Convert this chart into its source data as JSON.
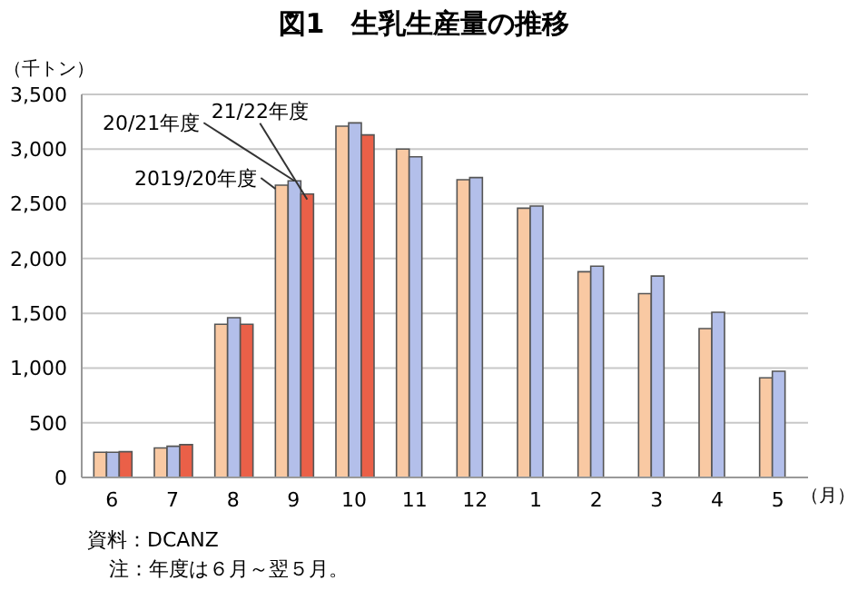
{
  "chart_data": {
    "type": "bar",
    "title": "図1　生乳生産量の推移",
    "ylabel": "（千トン）",
    "xlabel": "（月）",
    "categories": [
      "6",
      "7",
      "8",
      "9",
      "10",
      "11",
      "12",
      "1",
      "2",
      "3",
      "4",
      "5"
    ],
    "series": [
      {
        "name": "2019/20年度",
        "color": "#f9c9a3",
        "values": [
          230,
          270,
          1400,
          2670,
          3210,
          3000,
          2720,
          2460,
          1880,
          1680,
          1360,
          910
        ]
      },
      {
        "name": "20/21年度",
        "color": "#b3bfea",
        "values": [
          230,
          285,
          1460,
          2710,
          3240,
          2930,
          2740,
          2480,
          1930,
          1840,
          1510,
          970
        ]
      },
      {
        "name": "21/22年度",
        "color": "#ea6048",
        "values": [
          235,
          300,
          1400,
          2590,
          3130,
          null,
          null,
          null,
          null,
          null,
          null,
          null
        ]
      }
    ],
    "ylim": [
      0,
      3500
    ],
    "yticks": [
      {
        "value": 0,
        "label": "0"
      },
      {
        "value": 500,
        "label": "500"
      },
      {
        "value": 1000,
        "label": "1,000"
      },
      {
        "value": 1500,
        "label": "1,500"
      },
      {
        "value": 2000,
        "label": "2,000"
      },
      {
        "value": 2500,
        "label": "2,500"
      },
      {
        "value": 3000,
        "label": "3,000"
      },
      {
        "value": 3500,
        "label": "3,500"
      }
    ],
    "grid": "y",
    "legend": false,
    "annotations": [
      "資料：DCANZ",
      "注：年度は６月～翌５月。"
    ]
  }
}
